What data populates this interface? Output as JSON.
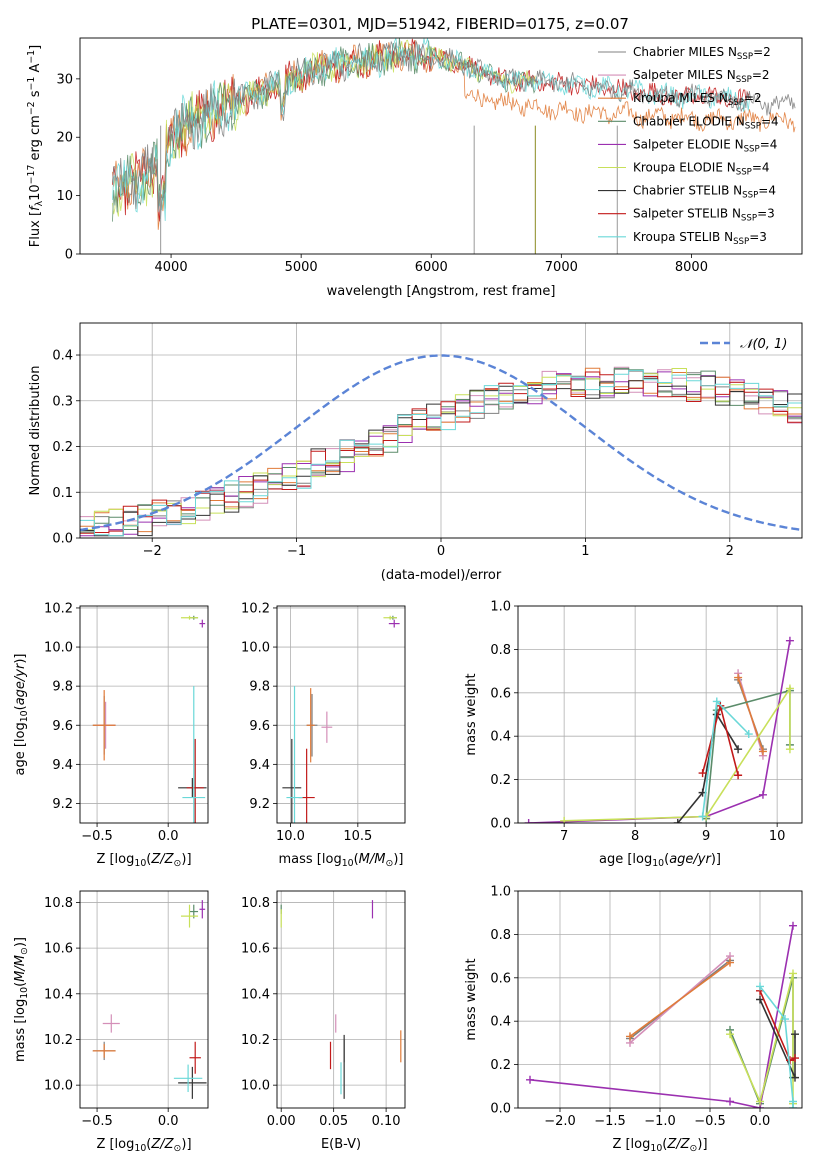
{
  "figure": {
    "title": "PLATE=0301, MJD=51942, FIBERID=0175, z=0.07"
  },
  "colors": {
    "Chabrier MILES": "#808080",
    "Salpeter MILES": "#d48fb8",
    "Kroupa MILES": "#e07b39",
    "Chabrier ELODIE": "#5b8c6a",
    "Salpeter ELODIE": "#9b30b0",
    "Kroupa ELODIE": "#c8e05a",
    "Chabrier STELIB": "#333333",
    "Salpeter STELIB": "#c21a1a",
    "Kroupa STELIB": "#6ad8d8",
    "gauss": "#5b84d6",
    "grid": "#b0b0b0"
  },
  "chart_data": [
    {
      "id": "spectrum",
      "type": "line",
      "title": "PLATE=0301, MJD=51942, FIBERID=0175, z=0.07",
      "xlabel": "wavelength [Angstrom, rest frame]",
      "ylabel": "Flux [f_λ 10^-17 erg cm^-2 s^-1 A^-1]",
      "xlim": [
        3300,
        8850
      ],
      "ylim": [
        0,
        37
      ],
      "xticks": [
        4000,
        5000,
        6000,
        7000,
        8000
      ],
      "yticks": [
        0,
        10,
        20,
        30
      ],
      "grid": false,
      "legend_position": "top-right",
      "legend": [
        {
          "base": "Chabrier MILES",
          "nssp": "=2"
        },
        {
          "base": "Salpeter MILES",
          "nssp": "=2"
        },
        {
          "base": "Kroupa MILES",
          "nssp": "=2"
        },
        {
          "base": "Chabrier ELODIE",
          "nssp": "=4"
        },
        {
          "base": "Salpeter ELODIE",
          "nssp": "=4"
        },
        {
          "base": "Kroupa ELODIE",
          "nssp": "=4"
        },
        {
          "base": "Chabrier STELIB",
          "nssp": "=4"
        },
        {
          "base": "Salpeter STELIB",
          "nssp": "=3"
        },
        {
          "base": "Kroupa STELIB",
          "nssp": "=3"
        }
      ],
      "continuum": {
        "x": [
          3550,
          3700,
          3850,
          4000,
          4100,
          4300,
          4500,
          4700,
          4900,
          5100,
          5300,
          5500,
          5700,
          5900,
          6100,
          6300,
          6500,
          6700,
          6900,
          7100,
          7300,
          7500,
          7700,
          7900,
          8100,
          8300,
          8500,
          8800
        ],
        "y": [
          11,
          12,
          14,
          20,
          22,
          24,
          26,
          28,
          30,
          31.5,
          32.5,
          33,
          34,
          34,
          33.5,
          32,
          30,
          29.5,
          29.5,
          29,
          28.5,
          28,
          27.5,
          27,
          27,
          26.5,
          26,
          25.5
        ]
      },
      "kroupa_miles_low": {
        "x": [
          6250,
          6500,
          6700,
          6900,
          7100,
          7300,
          7500,
          7700,
          7900,
          8100,
          8300,
          8500
        ],
        "y": [
          27,
          26,
          25.5,
          25,
          24.5,
          24,
          24,
          23.5,
          23.5,
          23,
          23,
          23
        ]
      }
    },
    {
      "id": "residuals",
      "type": "step",
      "xlabel": "(data-model)/error",
      "ylabel": "Normed distribution",
      "xlim": [
        -2.5,
        2.5
      ],
      "ylim": [
        0,
        0.47
      ],
      "xticks": [
        -2,
        -1,
        0,
        1,
        2
      ],
      "yticks": [
        0.0,
        0.1,
        0.2,
        0.3,
        0.4
      ],
      "grid": true,
      "legend_position": "top-right",
      "legend": [
        {
          "name": "𝒩(0, 1)"
        }
      ],
      "bin_edges_start": -2.5,
      "bin_width": 0.1,
      "hist_mean": [
        0.02,
        0.03,
        0.03,
        0.04,
        0.04,
        0.05,
        0.06,
        0.06,
        0.07,
        0.08,
        0.09,
        0.1,
        0.11,
        0.12,
        0.13,
        0.14,
        0.16,
        0.17,
        0.18,
        0.2,
        0.21,
        0.22,
        0.24,
        0.25,
        0.26,
        0.27,
        0.28,
        0.29,
        0.3,
        0.31,
        0.32,
        0.32,
        0.33,
        0.33,
        0.34,
        0.34,
        0.34,
        0.34,
        0.34,
        0.34,
        0.34,
        0.34,
        0.33,
        0.33,
        0.32,
        0.32,
        0.31,
        0.3,
        0.29,
        0.28,
        0.27,
        0.26,
        0.25,
        0.24,
        0.23,
        0.21,
        0.2,
        0.18,
        0.17,
        0.15,
        0.14,
        0.13,
        0.12,
        0.11,
        0.1,
        0.1,
        0.09,
        0.09,
        0.08,
        0.08,
        0.07,
        0.07,
        0.07,
        0.06,
        0.06
      ]
    },
    {
      "id": "age-vs-Z",
      "type": "errorbar",
      "xlabel": "Z [log10(Z/Z⊙)]",
      "ylabel": "age [log10(age/yr)]",
      "xlim": [
        -0.62,
        0.28
      ],
      "ylim": [
        9.1,
        10.21
      ],
      "xticks": [
        -0.5,
        0.0
      ],
      "yticks": [
        9.2,
        9.4,
        9.6,
        9.8,
        10.0,
        10.2
      ],
      "grid": true,
      "points": [
        {
          "model": "Chabrier MILES",
          "x": -0.45,
          "y": 9.6,
          "xerr": 0.08,
          "yerr": 0.15
        },
        {
          "model": "Salpeter MILES",
          "x": -0.44,
          "y": 9.6,
          "xerr": 0.07,
          "yerr": 0.12
        },
        {
          "model": "Kroupa MILES",
          "x": -0.45,
          "y": 9.6,
          "xerr": 0.08,
          "yerr": 0.18
        },
        {
          "model": "Chabrier ELODIE",
          "x": 0.18,
          "y": 10.15,
          "xerr": 0.03,
          "yerr": 0.01
        },
        {
          "model": "Salpeter ELODIE",
          "x": 0.24,
          "y": 10.12,
          "xerr": 0.02,
          "yerr": 0.02
        },
        {
          "model": "Kroupa ELODIE",
          "x": 0.15,
          "y": 10.15,
          "xerr": 0.06,
          "yerr": 0.01
        },
        {
          "model": "Chabrier STELIB",
          "x": 0.17,
          "y": 9.28,
          "xerr": 0.1,
          "yerr": 0.05
        },
        {
          "model": "Salpeter STELIB",
          "x": 0.19,
          "y": 9.28,
          "xerr": 0.06,
          "yerr": 0.25
        },
        {
          "model": "Kroupa STELIB",
          "x": 0.18,
          "y": 9.23,
          "xerr": 0.08,
          "yerr": 0.57
        }
      ]
    },
    {
      "id": "age-vs-mass",
      "type": "errorbar",
      "xlabel": "mass [log10(M/M⊙)]",
      "ylabel": "",
      "xlim": [
        9.9,
        10.85
      ],
      "ylim": [
        9.1,
        10.21
      ],
      "xticks": [
        10.0,
        10.5
      ],
      "yticks": [
        9.2,
        9.4,
        9.6,
        9.8,
        10.0,
        10.2
      ],
      "grid": true,
      "points": [
        {
          "model": "Chabrier MILES",
          "x": 10.16,
          "y": 9.6,
          "xerr": 0.04,
          "yerr": 0.16
        },
        {
          "model": "Salpeter MILES",
          "x": 10.27,
          "y": 9.59,
          "xerr": 0.04,
          "yerr": 0.08
        },
        {
          "model": "Kroupa MILES",
          "x": 10.15,
          "y": 9.6,
          "xerr": 0.03,
          "yerr": 0.19
        },
        {
          "model": "Chabrier ELODIE",
          "x": 10.76,
          "y": 10.15,
          "xerr": 0.03,
          "yerr": 0.01
        },
        {
          "model": "Salpeter ELODIE",
          "x": 10.77,
          "y": 10.12,
          "xerr": 0.04,
          "yerr": 0.02
        },
        {
          "model": "Kroupa ELODIE",
          "x": 10.74,
          "y": 10.15,
          "xerr": 0.05,
          "yerr": 0.01
        },
        {
          "model": "Chabrier STELIB",
          "x": 10.01,
          "y": 9.28,
          "xerr": 0.07,
          "yerr": 0.25
        },
        {
          "model": "Salpeter STELIB",
          "x": 10.12,
          "y": 9.23,
          "xerr": 0.06,
          "yerr": 0.25
        },
        {
          "model": "Kroupa STELIB",
          "x": 10.03,
          "y": 9.23,
          "xerr": 0.06,
          "yerr": 0.57
        }
      ]
    },
    {
      "id": "weight-vs-age",
      "type": "line",
      "xlabel": "age [log10(age/yr)]",
      "ylabel": "mass weight",
      "xlim": [
        6.35,
        10.35
      ],
      "ylim": [
        0.0,
        1.0
      ],
      "xticks": [
        7,
        8,
        9,
        10
      ],
      "yticks": [
        0.0,
        0.2,
        0.4,
        0.6,
        0.8,
        1.0
      ],
      "grid": true,
      "series": [
        {
          "model": "Chabrier MILES",
          "x": [
            9.45,
            9.8
          ],
          "y": [
            0.66,
            0.34
          ]
        },
        {
          "model": "Salpeter MILES",
          "x": [
            9.45,
            9.8
          ],
          "y": [
            0.69,
            0.31
          ]
        },
        {
          "model": "Kroupa MILES",
          "x": [
            9.45,
            9.8
          ],
          "y": [
            0.67,
            0.33
          ]
        },
        {
          "model": "Chabrier ELODIE",
          "x": [
            9.0,
            9.15,
            10.18,
            10.18
          ],
          "y": [
            0.02,
            0.52,
            0.61,
            0.36
          ]
        },
        {
          "model": "Salpeter ELODIE",
          "x": [
            6.5,
            9.0,
            9.8,
            10.18
          ],
          "y": [
            0.0,
            0.03,
            0.13,
            0.84
          ]
        },
        {
          "model": "Kroupa ELODIE",
          "x": [
            7.0,
            9.0,
            10.18,
            10.18
          ],
          "y": [
            0.01,
            0.03,
            0.62,
            0.34
          ]
        },
        {
          "model": "Chabrier STELIB",
          "x": [
            8.6,
            8.95,
            9.15,
            9.45
          ],
          "y": [
            0.0,
            0.14,
            0.5,
            0.34
          ]
        },
        {
          "model": "Salpeter STELIB",
          "x": [
            8.95,
            9.2,
            9.45
          ],
          "y": [
            0.23,
            0.54,
            0.22
          ]
        },
        {
          "model": "Kroupa STELIB",
          "x": [
            8.95,
            9.15,
            9.6
          ],
          "y": [
            0.03,
            0.56,
            0.41
          ]
        }
      ]
    },
    {
      "id": "mass-vs-Z",
      "type": "errorbar",
      "xlabel": "Z [log10(Z/Z⊙)]",
      "ylabel": "mass [log10(M/M⊙)]",
      "xlim": [
        -0.62,
        0.28
      ],
      "ylim": [
        9.9,
        10.85
      ],
      "xticks": [
        -0.5,
        0.0
      ],
      "yticks": [
        10.0,
        10.2,
        10.4,
        10.6,
        10.8
      ],
      "grid": true,
      "points": [
        {
          "model": "Chabrier MILES",
          "x": -0.45,
          "y": 10.15,
          "xerr": 0.08,
          "yerr": 0.04
        },
        {
          "model": "Salpeter MILES",
          "x": -0.4,
          "y": 10.27,
          "xerr": 0.06,
          "yerr": 0.04
        },
        {
          "model": "Kroupa MILES",
          "x": -0.45,
          "y": 10.15,
          "xerr": 0.08,
          "yerr": 0.03
        },
        {
          "model": "Chabrier ELODIE",
          "x": 0.18,
          "y": 10.76,
          "xerr": 0.03,
          "yerr": 0.03
        },
        {
          "model": "Salpeter ELODIE",
          "x": 0.24,
          "y": 10.77,
          "xerr": 0.02,
          "yerr": 0.04
        },
        {
          "model": "Kroupa ELODIE",
          "x": 0.15,
          "y": 10.74,
          "xerr": 0.06,
          "yerr": 0.05
        },
        {
          "model": "Chabrier STELIB",
          "x": 0.17,
          "y": 10.01,
          "xerr": 0.1,
          "yerr": 0.07
        },
        {
          "model": "Salpeter STELIB",
          "x": 0.19,
          "y": 10.12,
          "xerr": 0.04,
          "yerr": 0.07
        },
        {
          "model": "Kroupa STELIB",
          "x": 0.14,
          "y": 10.03,
          "xerr": 0.1,
          "yerr": 0.06
        }
      ]
    },
    {
      "id": "mass-vs-EBV",
      "type": "errorbar",
      "xlabel": "E(B-V)",
      "ylabel": "",
      "xlim": [
        -0.004,
        0.118
      ],
      "ylim": [
        9.9,
        10.85
      ],
      "xticks": [
        0.0,
        0.05,
        0.1
      ],
      "yticks": [
        10.0,
        10.2,
        10.4,
        10.6,
        10.8
      ],
      "grid": true,
      "points": [
        {
          "model": "Chabrier MILES",
          "x": 0.06,
          "y": 10.15,
          "xerr": 0.0,
          "yerr": 0.05
        },
        {
          "model": "Salpeter MILES",
          "x": 0.052,
          "y": 10.27,
          "xerr": 0.0,
          "yerr": 0.04
        },
        {
          "model": "Kroupa MILES",
          "x": 0.114,
          "y": 10.17,
          "xerr": 0.0,
          "yerr": 0.07
        },
        {
          "model": "Chabrier ELODIE",
          "x": 0.0,
          "y": 10.77,
          "xerr": 0.0,
          "yerr": 0.02
        },
        {
          "model": "Salpeter ELODIE",
          "x": 0.087,
          "y": 10.77,
          "xerr": 0.0,
          "yerr": 0.04
        },
        {
          "model": "Kroupa ELODIE",
          "x": 0.0,
          "y": 10.73,
          "xerr": 0.0,
          "yerr": 0.04
        },
        {
          "model": "Chabrier STELIB",
          "x": 0.06,
          "y": 10.08,
          "xerr": 0.0,
          "yerr": 0.14
        },
        {
          "model": "Salpeter STELIB",
          "x": 0.047,
          "y": 10.13,
          "xerr": 0.0,
          "yerr": 0.06
        },
        {
          "model": "Kroupa STELIB",
          "x": 0.057,
          "y": 10.03,
          "xerr": 0.0,
          "yerr": 0.07
        }
      ]
    },
    {
      "id": "weight-vs-Z",
      "type": "line",
      "xlabel": "Z [log10(Z/Z⊙)]",
      "ylabel": "mass weight",
      "xlim": [
        -2.42,
        0.42
      ],
      "ylim": [
        0.0,
        1.0
      ],
      "xticks": [
        -2.0,
        -1.5,
        -1.0,
        -0.5,
        0.0
      ],
      "yticks": [
        0.0,
        0.2,
        0.4,
        0.6,
        0.8,
        1.0
      ],
      "grid": true,
      "series": [
        {
          "model": "Chabrier MILES",
          "x": [
            -1.3,
            -0.3
          ],
          "y": [
            0.32,
            0.68
          ]
        },
        {
          "model": "Salpeter MILES",
          "x": [
            -1.3,
            -0.3
          ],
          "y": [
            0.3,
            0.7
          ]
        },
        {
          "model": "Kroupa MILES",
          "x": [
            -1.3,
            -0.3
          ],
          "y": [
            0.33,
            0.67
          ]
        },
        {
          "model": "Chabrier ELODIE",
          "x": [
            -0.3,
            0.0,
            0.33,
            0.33
          ],
          "y": [
            0.36,
            0.02,
            0.6,
            0.14
          ]
        },
        {
          "model": "Salpeter ELODIE",
          "x": [
            -2.3,
            -0.3,
            0.0,
            0.33
          ],
          "y": [
            0.13,
            0.03,
            0.0,
            0.84
          ]
        },
        {
          "model": "Kroupa ELODIE",
          "x": [
            -0.3,
            0.0,
            0.33,
            0.33
          ],
          "y": [
            0.34,
            0.03,
            0.62,
            0.02
          ]
        },
        {
          "model": "Chabrier STELIB",
          "x": [
            0.0,
            0.35,
            0.35
          ],
          "y": [
            0.5,
            0.14,
            0.34
          ]
        },
        {
          "model": "Salpeter STELIB",
          "x": [
            0.0,
            0.3,
            0.35
          ],
          "y": [
            0.54,
            0.22,
            0.23
          ]
        },
        {
          "model": "Kroupa STELIB",
          "x": [
            0.0,
            0.25,
            0.33,
            0.33
          ],
          "y": [
            0.56,
            0.41,
            0.03,
            0.0
          ]
        }
      ]
    }
  ]
}
